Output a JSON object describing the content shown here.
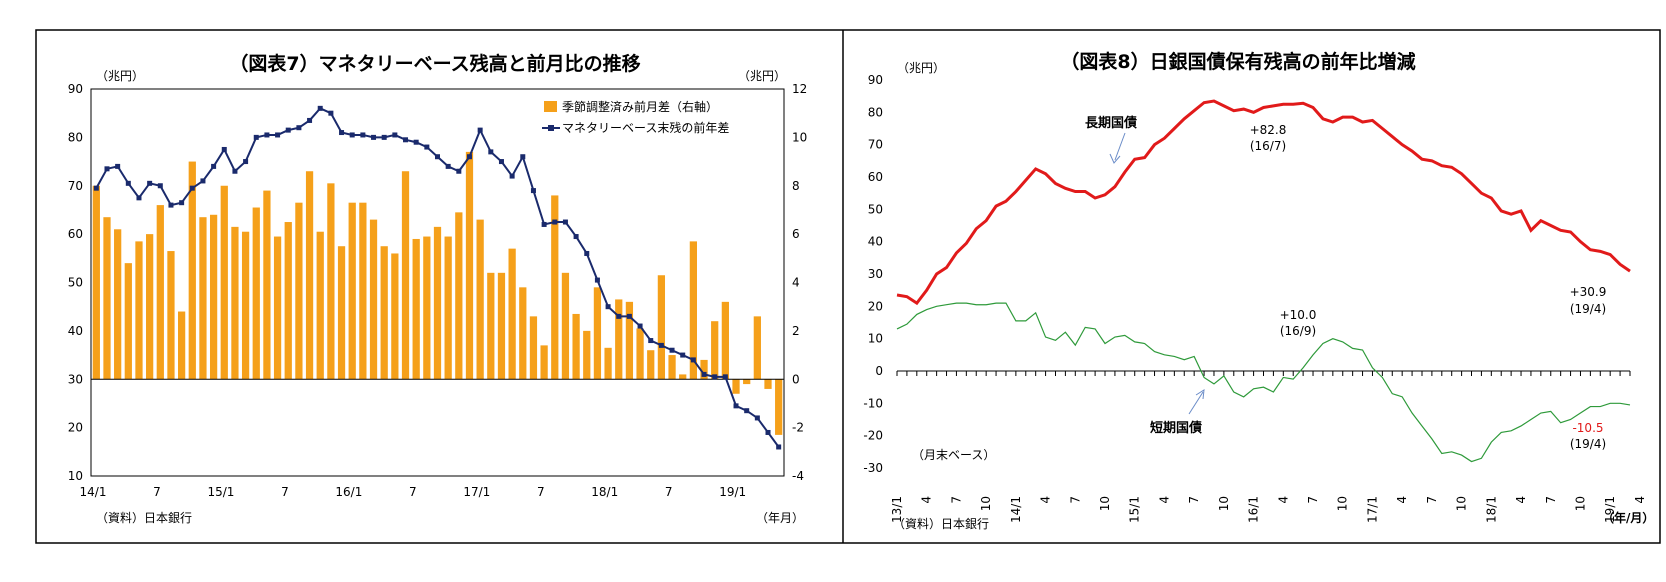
{
  "charts": [
    {
      "id": "left",
      "title": "（図表7）マネタリーベース残高と前月比の推移",
      "unit_left": "（兆円）",
      "unit_right": "（兆円）",
      "source": "（資料）日本銀行",
      "axis_unit": "（年月）",
      "legend": {
        "bar_label": "季節調整済み前月差（右軸）",
        "line_label": "マネタリーベース末残の前年差"
      }
    },
    {
      "id": "right",
      "title": "（図表8）日銀国債保有残高の前年比増減",
      "unit_left": "（兆円）",
      "inner_note": "（月末ベース）",
      "source": "（資料）日本銀行",
      "axis_unit": "（年/月）",
      "series_labels": {
        "long": "長期国債",
        "short": "短期国債"
      },
      "annotations": [
        {
          "id": "long-peak",
          "line1": "+82.8",
          "line2": "(16/7)"
        },
        {
          "id": "long-end",
          "line1": "+30.9",
          "line2": "(19/4)"
        },
        {
          "id": "short-peak",
          "line1": "+10.0",
          "line2": "(16/9)"
        },
        {
          "id": "short-end",
          "line1": "-10.5",
          "line2": "(19/4)"
        }
      ]
    }
  ],
  "chart_data": [
    {
      "type": "bar+line",
      "title": "（図表7）マネタリーベース残高と前月比の推移",
      "x_tick_labels": [
        "14/1",
        "7",
        "15/1",
        "7",
        "16/1",
        "7",
        "17/1",
        "7",
        "18/1",
        "7",
        "19/1"
      ],
      "categories_start": "14/1",
      "left_axis": {
        "ylim": [
          10,
          90
        ],
        "ticks": [
          10,
          20,
          30,
          40,
          50,
          60,
          70,
          80,
          90
        ]
      },
      "right_axis": {
        "ylim": [
          -4,
          12
        ],
        "ticks": [
          -4,
          -2,
          0,
          2,
          4,
          6,
          8,
          10,
          12
        ]
      },
      "series": [
        {
          "name": "季節調整済み前月差（右軸）",
          "type": "bar",
          "axis": "right",
          "color": "#f5a01a",
          "values": [
            8,
            6.7,
            6.2,
            4.8,
            5.7,
            6,
            7.2,
            5.3,
            2.8,
            9,
            6.7,
            6.8,
            8,
            6.3,
            6.1,
            7.1,
            7.8,
            5.9,
            6.5,
            7.3,
            8.6,
            6.1,
            8.1,
            5.5,
            7.3,
            7.3,
            6.6,
            5.5,
            5.2,
            8.6,
            5.8,
            5.9,
            6.3,
            5.9,
            6.9,
            9.4,
            6.6,
            4.4,
            4.4,
            5.4,
            3.8,
            2.6,
            1.4,
            7.6,
            4.4,
            2.7,
            2,
            3.8,
            1.3,
            3.3,
            3.2,
            2.1,
            1.2,
            4.3,
            1,
            0.2,
            5.7,
            0.8,
            2.4,
            3.2,
            -0.6,
            -0.2,
            2.6,
            -0.4,
            -2.3
          ]
        },
        {
          "name": "マネタリーベース末残の前年差",
          "type": "line",
          "axis": "left",
          "color": "#1a2a6c",
          "values": [
            69.5,
            73.5,
            74,
            70.5,
            67.5,
            70.5,
            70,
            66,
            66.5,
            69.5,
            71,
            74,
            77.5,
            73,
            75,
            80,
            80.5,
            80.5,
            81.5,
            82,
            83.5,
            86,
            85,
            81,
            80.5,
            80.5,
            80,
            80,
            80.5,
            79.5,
            79,
            78,
            76,
            74,
            73,
            76,
            81.5,
            77,
            75,
            72,
            76,
            69,
            62,
            62.5,
            62.5,
            59.5,
            56,
            50.5,
            45,
            43,
            43,
            41,
            38,
            37,
            36,
            35,
            34,
            31,
            30.5,
            30.5,
            24.5,
            23.5,
            22,
            19,
            16
          ]
        }
      ],
      "legend_position": "top-right"
    },
    {
      "type": "line",
      "title": "（図表8）日銀国債保有残高の前年比増減",
      "x_tick_labels": [
        "13/1",
        "4",
        "7",
        "10",
        "14/1",
        "4",
        "7",
        "10",
        "15/1",
        "4",
        "7",
        "10",
        "16/1",
        "4",
        "7",
        "10",
        "17/1",
        "4",
        "7",
        "10",
        "18/1",
        "4",
        "7",
        "10",
        "19/1",
        "4"
      ],
      "categories_start": "13/1",
      "ylim": [
        -30,
        90
      ],
      "y_ticks": [
        -30,
        -20,
        -10,
        0,
        10,
        20,
        30,
        40,
        50,
        60,
        70,
        80,
        90
      ],
      "series": [
        {
          "name": "長期国債",
          "color": "#e11a1a",
          "values": [
            23.5,
            23,
            21,
            25,
            30,
            32,
            36.5,
            39.5,
            44,
            46.5,
            51,
            52.5,
            55.5,
            59,
            62.5,
            61,
            58,
            56.5,
            55.5,
            55.5,
            53.5,
            54.5,
            57,
            61.5,
            65.5,
            66,
            70,
            72,
            75,
            78,
            80.5,
            83,
            83.5,
            82,
            80.5,
            81,
            80,
            81.5,
            82,
            82.5,
            82.5,
            82.8,
            81.5,
            78,
            77,
            78.5,
            78.5,
            77,
            77.5,
            75,
            72.5,
            70,
            68,
            65.5,
            65,
            63.5,
            63,
            61,
            58,
            55,
            53.5,
            49.5,
            48.5,
            49.5,
            43.5,
            46.5,
            45,
            43.5,
            43,
            40,
            37.5,
            37,
            36,
            33,
            30.9
          ]
        },
        {
          "name": "短期国債",
          "color": "#2e9a3a",
          "values": [
            13,
            14.5,
            17.5,
            19,
            20,
            20.5,
            21,
            21,
            20.5,
            20.5,
            21,
            21,
            15.5,
            15.5,
            18,
            10.5,
            9.5,
            12,
            8,
            13.5,
            13,
            8.5,
            10.5,
            11,
            9,
            8.5,
            6,
            5,
            4.5,
            3.5,
            4.5,
            -2,
            -4,
            -1.5,
            -6.5,
            -8,
            -5.5,
            -5,
            -6.5,
            -2,
            -2.5,
            1,
            5,
            8.5,
            10,
            9,
            7,
            6.5,
            1,
            -2,
            -7,
            -8,
            -13,
            -17,
            -21,
            -25.5,
            -25,
            -26,
            -28,
            -27,
            -22,
            -19,
            -18.5,
            -17,
            -15,
            -13,
            -12.5,
            -16,
            -15,
            -13,
            -11,
            -11,
            -10,
            -10,
            -10.5
          ]
        }
      ]
    }
  ]
}
